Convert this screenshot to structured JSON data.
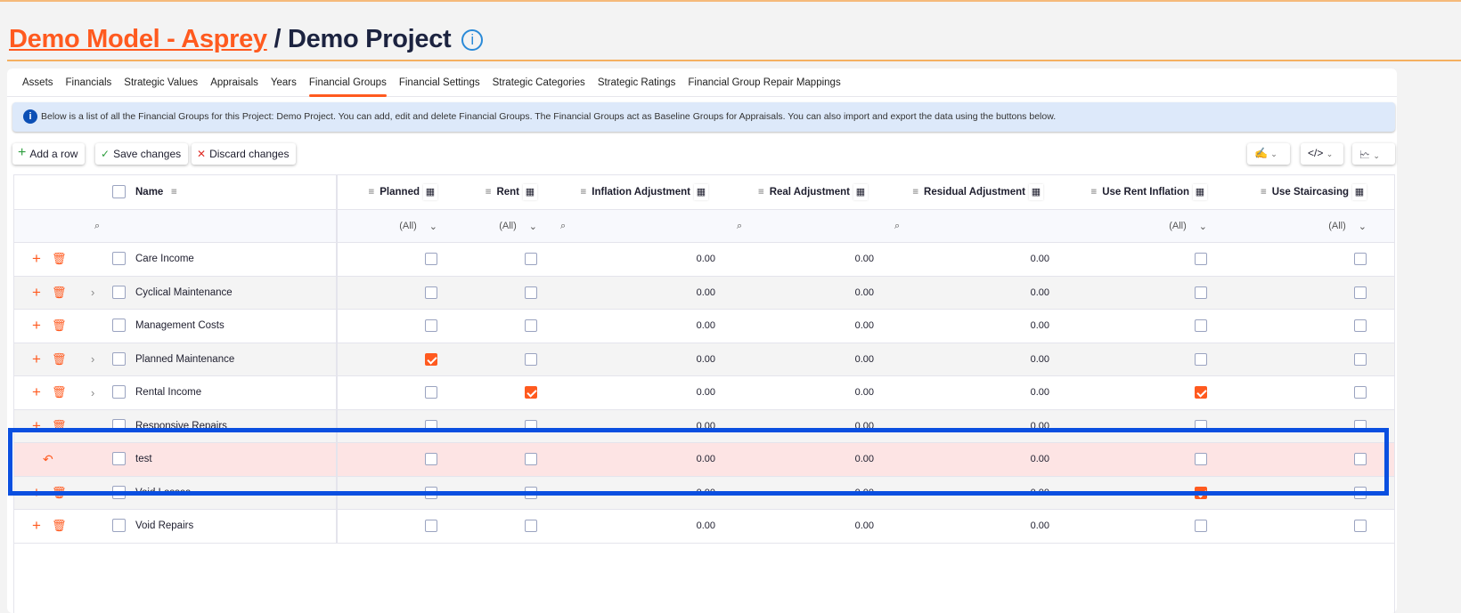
{
  "header": {
    "model_link": "Demo Model - Asprey",
    "separator": "/",
    "project": "Demo Project",
    "info_icon": "info-circle-icon"
  },
  "tabs": [
    {
      "label": "Assets"
    },
    {
      "label": "Financials"
    },
    {
      "label": "Strategic Values"
    },
    {
      "label": "Appraisals"
    },
    {
      "label": "Years"
    },
    {
      "label": "Financial Groups",
      "active": true
    },
    {
      "label": "Financial Settings"
    },
    {
      "label": "Strategic Categories"
    },
    {
      "label": "Strategic Ratings"
    },
    {
      "label": "Financial Group Repair Mappings"
    }
  ],
  "banner": "Below is a list of all the Financial Groups for this Project: Demo Project. You can add, edit and delete Financial Groups. The Financial Groups act as Baseline Groups for Appraisals. You can also import and export the data using the buttons below.",
  "toolbar": {
    "add": "Add a row",
    "save": "Save changes",
    "discard": "Discard changes",
    "colors": {
      "add": "#2e9e3e",
      "save": "#2e9e3e",
      "discard": "#e0302a"
    }
  },
  "columns": {
    "name": "Name",
    "planned": "Planned",
    "rent": "Rent",
    "inflation": "Inflation Adjustment",
    "real": "Real Adjustment",
    "residual": "Residual Adjustment",
    "use_rent_inflation": "Use Rent Inflation",
    "use_staircasing": "Use Staircasing"
  },
  "filters": {
    "all": "(All)"
  },
  "rows": [
    {
      "name": "Care Income",
      "expandable": false,
      "planned": false,
      "rent": false,
      "inflation": "0.00",
      "real": "0.00",
      "residual": "0.00",
      "uri": false,
      "us": false
    },
    {
      "name": "Cyclical Maintenance",
      "expandable": true,
      "planned": false,
      "rent": false,
      "inflation": "0.00",
      "real": "0.00",
      "residual": "0.00",
      "uri": false,
      "us": false
    },
    {
      "name": "Management Costs",
      "expandable": false,
      "planned": false,
      "rent": false,
      "inflation": "0.00",
      "real": "0.00",
      "residual": "0.00",
      "uri": false,
      "us": false
    },
    {
      "name": "Planned Maintenance",
      "expandable": true,
      "planned": true,
      "rent": false,
      "inflation": "0.00",
      "real": "0.00",
      "residual": "0.00",
      "uri": false,
      "us": false
    },
    {
      "name": "Rental Income",
      "expandable": true,
      "planned": false,
      "rent": true,
      "inflation": "0.00",
      "real": "0.00",
      "residual": "0.00",
      "uri": true,
      "us": false
    },
    {
      "name": "Responsive Repairs",
      "expandable": false,
      "planned": false,
      "rent": false,
      "inflation": "0.00",
      "real": "0.00",
      "residual": "0.00",
      "uri": false,
      "us": false
    },
    {
      "name": "test",
      "new": true,
      "expandable": false,
      "planned": false,
      "rent": false,
      "inflation": "0.00",
      "real": "0.00",
      "residual": "0.00",
      "uri": false,
      "us": false
    },
    {
      "name": "Void Losses",
      "expandable": false,
      "planned": false,
      "rent": false,
      "inflation": "0.00",
      "real": "0.00",
      "residual": "0.00",
      "uri": true,
      "us": false
    },
    {
      "name": "Void Repairs",
      "expandable": false,
      "planned": false,
      "rent": false,
      "inflation": "0.00",
      "real": "0.00",
      "residual": "0.00",
      "uri": false,
      "us": false
    }
  ],
  "colors": {
    "accent": "#ff5a1f",
    "highlight": "#0a4fe0",
    "new_row": "#fde4e4"
  }
}
